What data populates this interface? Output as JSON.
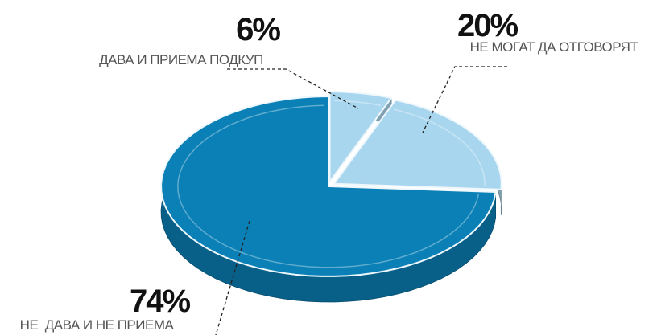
{
  "chart_data": {
    "type": "pie",
    "categories": [
      "ДАВА И ПРИЕМА ПОДКУП",
      "НЕ МОГАТ ДА ОТГОВОРЯТ",
      "НЕ  ДАВА И НЕ ПРИЕМА"
    ],
    "values": [
      6,
      20,
      74
    ],
    "value_labels": [
      "6%",
      "20%",
      "74%"
    ],
    "colors": [
      "#a9d6ef",
      "#a9d6ef",
      "#0a80b6"
    ]
  }
}
